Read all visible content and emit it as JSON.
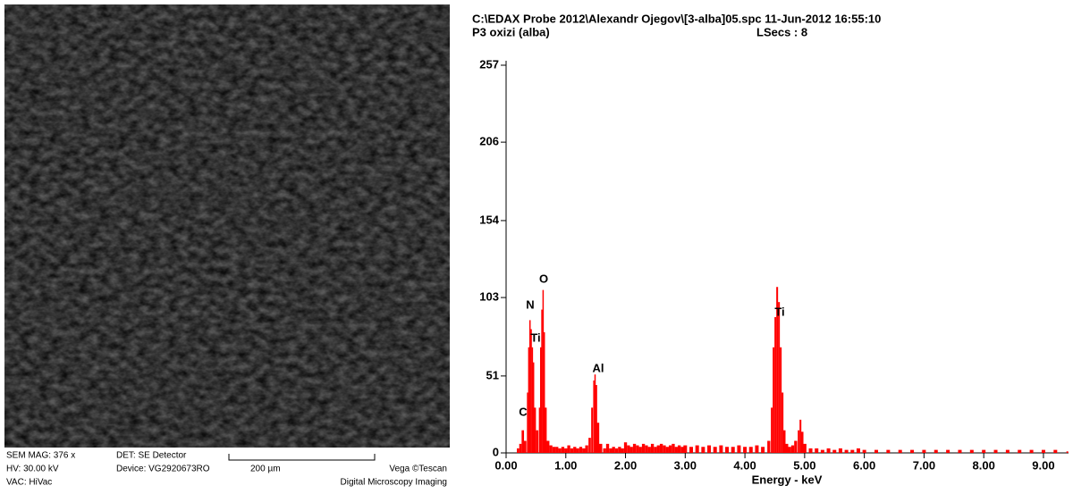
{
  "sem_info": {
    "mag": "SEM MAG: 376 x",
    "det": "DET: SE Detector",
    "hv": "HV:  30.00 kV",
    "device": "Device: VG2920673RO",
    "scale": "200 µm",
    "vendor": "Vega ©Tescan",
    "vac": "VAC: HiVac",
    "imaging": "Digital Microscopy Imaging"
  },
  "chart_data": {
    "type": "bar",
    "title": "C:\\EDAX Probe 2012\\Alexandr Ojegov\\[3-alba]05.spc  11-Jun-2012 16:55:10",
    "subtitle": "P3 oxizi (alba)",
    "lsecs": "LSecs :  8",
    "x_label": "Energy - keV",
    "color": "#ff0000",
    "xlim": [
      0,
      9.42
    ],
    "ylim": [
      0,
      257
    ],
    "yticks": [
      0,
      51,
      103,
      154,
      206,
      257
    ],
    "xticks": [
      {
        "value": 0,
        "label": "0.00"
      },
      {
        "value": 1,
        "label": "1.00"
      },
      {
        "value": 2,
        "label": "2.00"
      },
      {
        "value": 3,
        "label": "3.00"
      },
      {
        "value": 4,
        "label": "4.00"
      },
      {
        "value": 5,
        "label": "5.00"
      },
      {
        "value": 6,
        "label": "6.00"
      },
      {
        "value": 7,
        "label": "7.00"
      },
      {
        "value": 8,
        "label": "8.00"
      },
      {
        "value": 9,
        "label": "9.00"
      }
    ],
    "annotations": [
      "C",
      "N",
      "Ti",
      "O",
      "Al",
      "Ti"
    ],
    "x": [
      0.2,
      0.24,
      0.28,
      0.32,
      0.36,
      0.38,
      0.4,
      0.42,
      0.44,
      0.46,
      0.48,
      0.52,
      0.56,
      0.58,
      0.6,
      0.62,
      0.64,
      0.66,
      0.7,
      0.75,
      0.8,
      0.85,
      0.9,
      0.95,
      1.0,
      1.05,
      1.1,
      1.15,
      1.2,
      1.25,
      1.3,
      1.35,
      1.4,
      1.44,
      1.47,
      1.49,
      1.51,
      1.54,
      1.58,
      1.65,
      1.7,
      1.75,
      1.8,
      1.85,
      1.9,
      1.95,
      2.0,
      2.05,
      2.1,
      2.15,
      2.2,
      2.25,
      2.3,
      2.35,
      2.4,
      2.45,
      2.5,
      2.55,
      2.6,
      2.65,
      2.7,
      2.75,
      2.8,
      2.85,
      2.9,
      2.95,
      3.0,
      3.1,
      3.2,
      3.3,
      3.4,
      3.5,
      3.6,
      3.7,
      3.8,
      3.9,
      4.0,
      4.1,
      4.2,
      4.3,
      4.4,
      4.45,
      4.48,
      4.51,
      4.54,
      4.57,
      4.6,
      4.63,
      4.66,
      4.7,
      4.75,
      4.8,
      4.85,
      4.9,
      4.93,
      4.96,
      5.0,
      5.1,
      5.2,
      5.3,
      5.4,
      5.5,
      5.6,
      5.7,
      5.8,
      5.9,
      6.0,
      6.2,
      6.4,
      6.6,
      6.8,
      7.0,
      7.2,
      7.4,
      7.6,
      7.8,
      8.0,
      8.2,
      8.4,
      8.6,
      8.8,
      9.0,
      9.2,
      9.4
    ],
    "values": [
      3,
      6,
      15,
      8,
      40,
      70,
      88,
      82,
      70,
      60,
      30,
      15,
      30,
      70,
      95,
      108,
      80,
      30,
      8,
      5,
      4,
      4,
      3,
      4,
      3,
      5,
      3,
      4,
      3,
      4,
      3,
      5,
      10,
      30,
      48,
      52,
      45,
      20,
      6,
      3,
      6,
      3,
      4,
      3,
      4,
      3,
      7,
      5,
      4,
      6,
      5,
      4,
      6,
      5,
      4,
      6,
      4,
      5,
      6,
      5,
      4,
      5,
      6,
      4,
      5,
      4,
      5,
      4,
      5,
      4,
      5,
      4,
      5,
      4,
      4,
      5,
      4,
      4,
      5,
      4,
      8,
      30,
      70,
      90,
      110,
      100,
      70,
      40,
      15,
      6,
      4,
      5,
      8,
      15,
      22,
      14,
      6,
      3,
      3,
      2,
      3,
      2,
      3,
      2,
      2,
      3,
      2,
      2,
      2,
      2,
      2,
      2,
      2,
      2,
      2,
      2,
      2,
      2,
      2,
      2,
      2,
      2,
      2,
      1
    ]
  }
}
